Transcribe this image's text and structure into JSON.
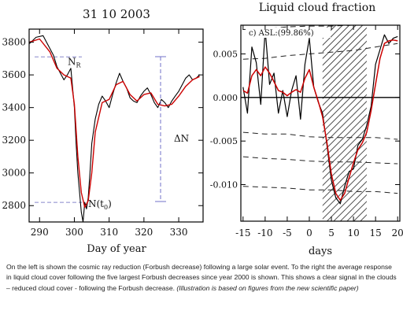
{
  "chart_data": [
    {
      "type": "line",
      "title": "31 10 2003",
      "xlabel": "Day of year",
      "ylabel": "",
      "xlim": [
        287,
        337
      ],
      "ylim": [
        2700,
        3880
      ],
      "xticks": [
        290,
        300,
        310,
        320,
        330
      ],
      "yticks": [
        2800,
        3000,
        3200,
        3400,
        3600,
        3800
      ],
      "grid": false,
      "series": [
        {
          "color": "#000000",
          "x": [
            287,
            289,
            291,
            292,
            293,
            294,
            295,
            296,
            297,
            298,
            299,
            300,
            300.5,
            301,
            301.5,
            302,
            302.5,
            303,
            303.5,
            304,
            304.5,
            305,
            306,
            307,
            308,
            309,
            310,
            311,
            312,
            313,
            314,
            315,
            316,
            317,
            318,
            319,
            320,
            321,
            322,
            323,
            324,
            325,
            326,
            327,
            328,
            329,
            330,
            331,
            332,
            333,
            334,
            335,
            336
          ],
          "values": [
            3790,
            3830,
            3840,
            3800,
            3760,
            3720,
            3650,
            3610,
            3570,
            3600,
            3640,
            3400,
            3180,
            3000,
            2880,
            2760,
            2700,
            2820,
            2780,
            2850,
            3000,
            3180,
            3330,
            3420,
            3470,
            3440,
            3400,
            3480,
            3550,
            3610,
            3560,
            3520,
            3460,
            3440,
            3430,
            3470,
            3500,
            3520,
            3480,
            3430,
            3400,
            3450,
            3430,
            3400,
            3440,
            3470,
            3500,
            3540,
            3580,
            3600,
            3570,
            3580,
            3600
          ]
        },
        {
          "color": "#cc0000",
          "x": [
            287,
            290,
            293,
            295,
            297,
            299,
            300,
            301,
            302,
            303,
            304,
            305,
            306,
            308,
            310,
            312,
            314,
            316,
            318,
            320,
            322,
            324,
            326,
            328,
            330,
            332,
            334,
            336
          ],
          "values": [
            3800,
            3820,
            3740,
            3640,
            3600,
            3580,
            3420,
            3100,
            2880,
            2790,
            2830,
            3000,
            3250,
            3430,
            3450,
            3540,
            3560,
            3480,
            3440,
            3480,
            3490,
            3420,
            3410,
            3420,
            3470,
            3530,
            3570,
            3590
          ]
        }
      ],
      "reference_lines": [
        {
          "label": "N",
          "sub": "R",
          "y": 3710
        },
        {
          "label": "N(t",
          "sub": "0",
          "tail": ")",
          "y": 2820
        }
      ],
      "delta_label": "ΔN"
    },
    {
      "type": "line",
      "title": "Liquid cloud fraction",
      "annotation": "c) ASL:(99.86%)",
      "xlabel": "days",
      "ylabel": "",
      "xlim": [
        -15.5,
        20.5
      ],
      "ylim": [
        -0.0142,
        0.0083
      ],
      "xticks": [
        -15,
        -10,
        -5,
        0,
        5,
        10,
        15,
        20
      ],
      "ytick_values": [
        0.005,
        0.0,
        -0.005,
        -0.01
      ],
      "ytick_labels": [
        "0.005",
        "0.000",
        "-0.005",
        "-0.010"
      ],
      "grid": false,
      "shaded_region": [
        3,
        13
      ],
      "zero_line": 0.0,
      "series": [
        {
          "color": "#000000",
          "x": [
            -15,
            -14,
            -13,
            -12,
            -11,
            -10,
            -9,
            -8,
            -7,
            -6,
            -5,
            -4,
            -3,
            -2,
            -1,
            0,
            1,
            2,
            3,
            4,
            5,
            6,
            7,
            8,
            9,
            10,
            11,
            12,
            13,
            14,
            15,
            16,
            17,
            18,
            19,
            20
          ],
          "values": [
            0.0012,
            -0.0018,
            0.0058,
            0.004,
            -0.0008,
            0.0078,
            0.0015,
            0.0028,
            -0.0018,
            0.0008,
            -0.0022,
            0.0008,
            0.0025,
            -0.0025,
            0.0038,
            0.0068,
            0.0012,
            -0.0005,
            -0.0018,
            -0.0055,
            -0.0095,
            -0.0115,
            -0.0122,
            -0.0102,
            -0.0085,
            -0.0082,
            -0.0055,
            -0.0048,
            -0.0032,
            -0.001,
            0.0038,
            0.0055,
            0.0072,
            0.0062,
            0.0068,
            0.007
          ]
        },
        {
          "color": "#cc0000",
          "x": [
            -15,
            -14,
            -13,
            -12,
            -11,
            -10,
            -9,
            -8,
            -7,
            -6,
            -5,
            -4,
            -3,
            -2,
            -1,
            0,
            1,
            2,
            3,
            4,
            5,
            6,
            7,
            8,
            9,
            10,
            11,
            12,
            13,
            14,
            15,
            16,
            17,
            18,
            19,
            20
          ],
          "values": [
            0.0008,
            0.0005,
            0.0025,
            0.0032,
            0.0025,
            0.0035,
            0.0028,
            0.0018,
            0.0008,
            0.0006,
            0.0002,
            0.0006,
            0.0009,
            0.0006,
            0.0022,
            0.0032,
            0.0012,
            -0.0004,
            -0.0022,
            -0.0052,
            -0.0088,
            -0.011,
            -0.0118,
            -0.011,
            -0.0092,
            -0.0075,
            -0.006,
            -0.0052,
            -0.004,
            -0.0015,
            0.0015,
            0.0045,
            0.0062,
            0.0065,
            0.0066,
            0.0065
          ]
        }
      ],
      "confidence_bands": [
        {
          "x": [
            -15,
            -10,
            -5,
            0,
            5,
            10,
            15,
            20
          ],
          "values": [
            0.0044,
            0.0045,
            0.0048,
            0.005,
            0.0052,
            0.0054,
            0.0058,
            0.0062
          ]
        },
        {
          "x": [
            -15,
            -10,
            -5,
            0,
            5,
            10,
            15,
            20
          ],
          "values": [
            0.0078,
            0.0079,
            0.0081,
            0.0082,
            0.0082,
            0.0083,
            0.0083,
            0.0083
          ]
        },
        {
          "x": [
            -15,
            -10,
            -5,
            0,
            5,
            10,
            15,
            20
          ],
          "values": [
            -0.004,
            -0.0042,
            -0.0042,
            -0.0045,
            -0.0046,
            -0.0046,
            -0.0046,
            -0.0048
          ]
        },
        {
          "x": [
            -15,
            -10,
            -5,
            0,
            5,
            10,
            15,
            20
          ],
          "values": [
            -0.0068,
            -0.007,
            -0.0071,
            -0.0073,
            -0.0074,
            -0.0074,
            -0.0075,
            -0.0076
          ]
        },
        {
          "x": [
            -15,
            -10,
            -5,
            0,
            5,
            10,
            15,
            20
          ],
          "values": [
            -0.0102,
            -0.0103,
            -0.0104,
            -0.0106,
            -0.0106,
            -0.0108,
            -0.0108,
            -0.011
          ]
        }
      ]
    }
  ],
  "caption": {
    "plain": "On the left is shown the cosmic ray reduction (Forbush decrease) following a large solar event. To the right the average response in liquid cloud cover following the five largest Forbush decreases since year 2000 is shown. This shows a clear signal in the clouds – reduced cloud cover - following the Forbush decrease.",
    "italic": "(Illustration is based on figures from the new scientific paper)"
  }
}
